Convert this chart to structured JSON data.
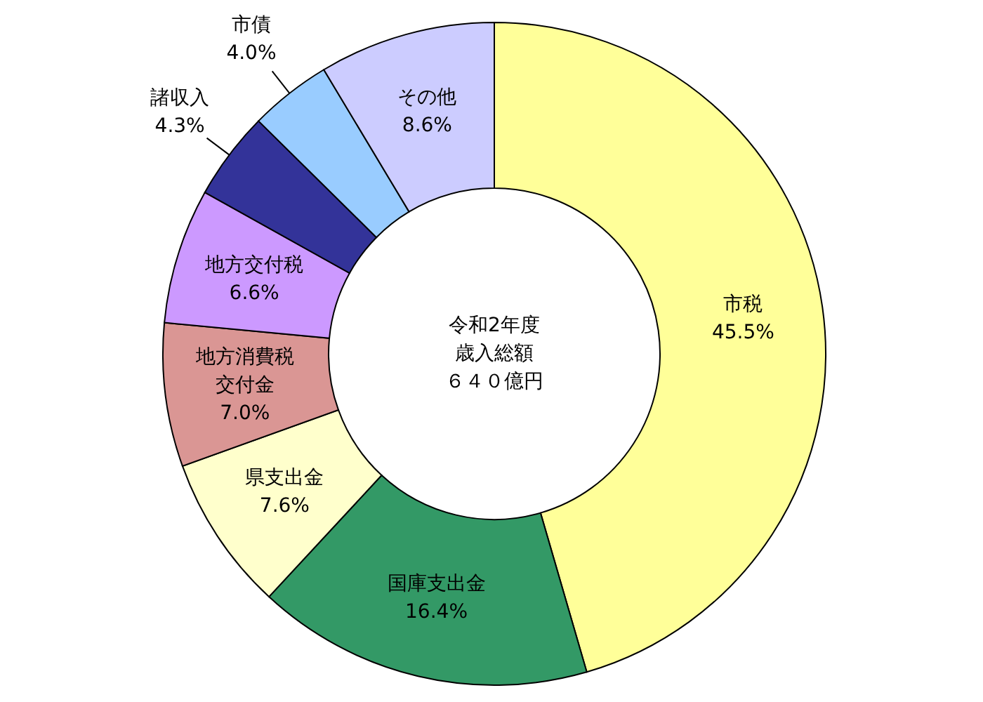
{
  "chart_data": {
    "type": "donut",
    "title": "令和2年度",
    "subtitle": "歳入総額",
    "annotations": [
      "６４０億円"
    ],
    "categories": [
      "市税",
      "国庫支出金",
      "県支出金",
      "地方消費税交付金",
      "地方交付税",
      "諸収入",
      "市債",
      "その他"
    ],
    "values": [
      45.5,
      16.4,
      7.6,
      7.0,
      6.6,
      4.3,
      4.0,
      8.6
    ],
    "value_labels": [
      "45.5%",
      "16.4%",
      "7.6%",
      "7.0%",
      "6.6%",
      "4.3%",
      "4.0%",
      "8.6%"
    ],
    "colors": [
      "#ffff99",
      "#339966",
      "#ffffcc",
      "#da9694",
      "#cc99ff",
      "#333399",
      "#99ccff",
      "#ccccff"
    ]
  }
}
